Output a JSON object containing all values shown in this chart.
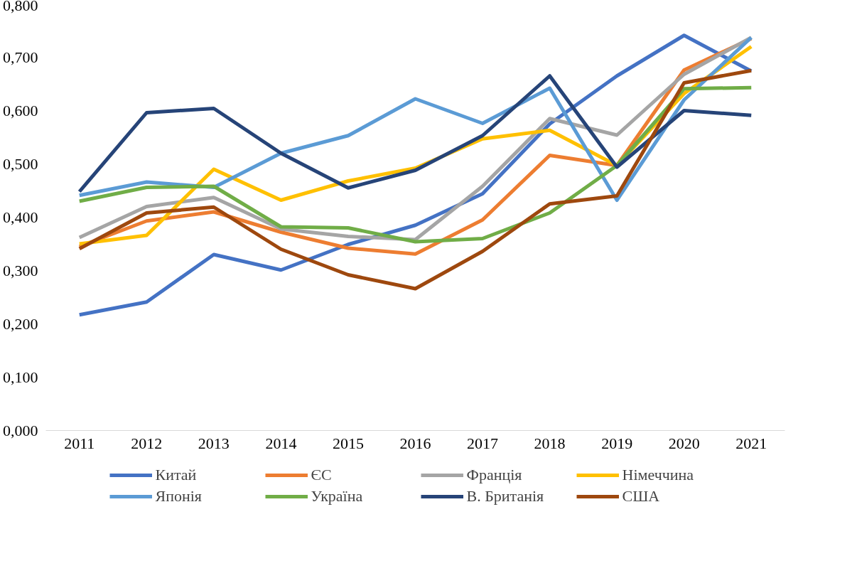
{
  "chart_data": {
    "type": "line",
    "categories": [
      "2011",
      "2012",
      "2013",
      "2014",
      "2015",
      "2016",
      "2017",
      "2018",
      "2019",
      "2020",
      "2021"
    ],
    "ylim": [
      0,
      0.8
    ],
    "yticks": [
      {
        "value": 0,
        "label": "0,000"
      },
      {
        "value": 0.1,
        "label": "0,100"
      },
      {
        "value": 0.2,
        "label": "0,200"
      },
      {
        "value": 0.3,
        "label": "0,300"
      },
      {
        "value": 0.4,
        "label": "0,400"
      },
      {
        "value": 0.5,
        "label": "0,500"
      },
      {
        "value": 0.6,
        "label": "0,600"
      },
      {
        "value": 0.7,
        "label": "0,700"
      },
      {
        "value": 0.8,
        "label": "0,800"
      }
    ],
    "grid": false,
    "legend": "bottom",
    "marker": "none",
    "line_style": "solid",
    "series": [
      {
        "name": "Китай",
        "color": "#4472c4",
        "values": [
          0.217,
          0.241,
          0.33,
          0.301,
          0.349,
          0.385,
          0.444,
          0.575,
          0.665,
          0.741,
          0.674
        ]
      },
      {
        "name": "ЄС",
        "color": "#ed7d31",
        "values": [
          0.345,
          0.393,
          0.41,
          0.372,
          0.342,
          0.331,
          0.395,
          0.516,
          0.497,
          0.676,
          0.735
        ]
      },
      {
        "name": "Франція",
        "color": "#a5a5a5",
        "values": [
          0.362,
          0.42,
          0.437,
          0.378,
          0.364,
          0.358,
          0.458,
          0.585,
          0.554,
          0.668,
          0.737
        ]
      },
      {
        "name": "Німеччина",
        "color": "#ffc000",
        "values": [
          0.35,
          0.366,
          0.49,
          0.432,
          0.468,
          0.492,
          0.547,
          0.563,
          0.497,
          0.632,
          0.72
        ]
      },
      {
        "name": "Японія",
        "color": "#5b9bd5",
        "values": [
          0.441,
          0.466,
          0.456,
          0.52,
          0.553,
          0.622,
          0.576,
          0.642,
          0.432,
          0.62,
          0.737
        ]
      },
      {
        "name": "Україна",
        "color": "#70ad47",
        "values": [
          0.43,
          0.456,
          0.458,
          0.382,
          0.38,
          0.354,
          0.36,
          0.408,
          0.497,
          0.641,
          0.643
        ]
      },
      {
        "name": "В. Британія",
        "color": "#264478",
        "values": [
          0.448,
          0.596,
          0.604,
          0.52,
          0.455,
          0.488,
          0.553,
          0.665,
          0.494,
          0.6,
          0.591
        ]
      },
      {
        "name": "США",
        "color": "#9e480e",
        "values": [
          0.341,
          0.408,
          0.419,
          0.34,
          0.292,
          0.266,
          0.336,
          0.425,
          0.44,
          0.652,
          0.675
        ]
      }
    ]
  }
}
